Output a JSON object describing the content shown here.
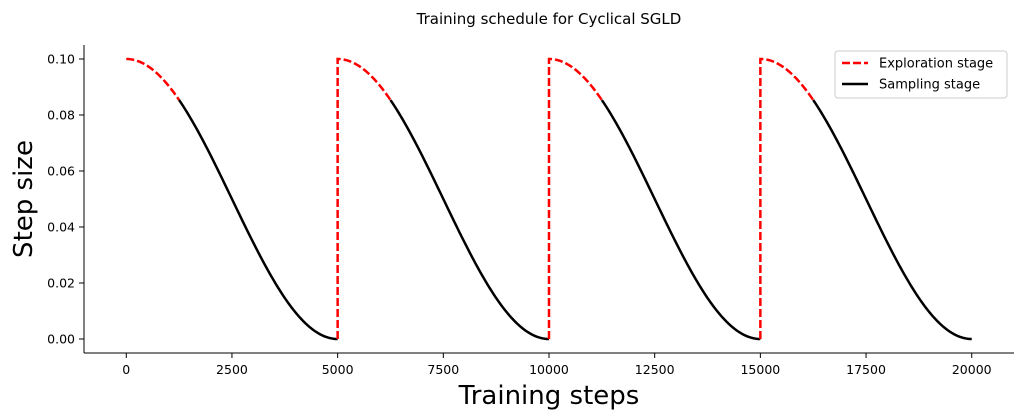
{
  "chart_data": {
    "type": "line",
    "title": "Training schedule for Cyclical SGLD",
    "xlabel": "Training steps",
    "ylabel": "Step size",
    "xlim": [
      -1000,
      21000
    ],
    "ylim": [
      -0.005,
      0.105
    ],
    "x_ticks": [
      0,
      2500,
      5000,
      7500,
      10000,
      12500,
      15000,
      17500,
      20000
    ],
    "x_tick_labels": [
      "0",
      "2500",
      "5000",
      "7500",
      "10000",
      "12500",
      "15000",
      "17500",
      "20000"
    ],
    "y_ticks": [
      0.0,
      0.02,
      0.04,
      0.06,
      0.08,
      0.1
    ],
    "y_tick_labels": [
      "0.00",
      "0.02",
      "0.04",
      "0.06",
      "0.08",
      "0.10"
    ],
    "schedule": {
      "formula": "cosine",
      "total_steps": 20000,
      "num_cycles": 4,
      "cycle_length": 5000,
      "max_step_size": 0.1,
      "exploration_fraction": 0.25
    },
    "series": [
      {
        "name": "Exploration stage",
        "style": "dashed",
        "color": "#ff0000",
        "segments": [
          {
            "x_start": 0,
            "x_end": 1250
          },
          {
            "x_start": 5000,
            "x_end": 6250
          },
          {
            "x_start": 10000,
            "x_end": 11250
          },
          {
            "x_start": 15000,
            "x_end": 16250
          }
        ],
        "jumps": [
          5000,
          10000,
          15000
        ]
      },
      {
        "name": "Sampling stage",
        "style": "solid",
        "color": "#000000",
        "segments": [
          {
            "x_start": 1250,
            "x_end": 5000
          },
          {
            "x_start": 6250,
            "x_end": 10000
          },
          {
            "x_start": 11250,
            "x_end": 15000
          },
          {
            "x_start": 16250,
            "x_end": 20000
          }
        ]
      }
    ],
    "legend": {
      "position": "top-right",
      "entries": [
        "Exploration stage",
        "Sampling stage"
      ]
    },
    "grid": false
  }
}
